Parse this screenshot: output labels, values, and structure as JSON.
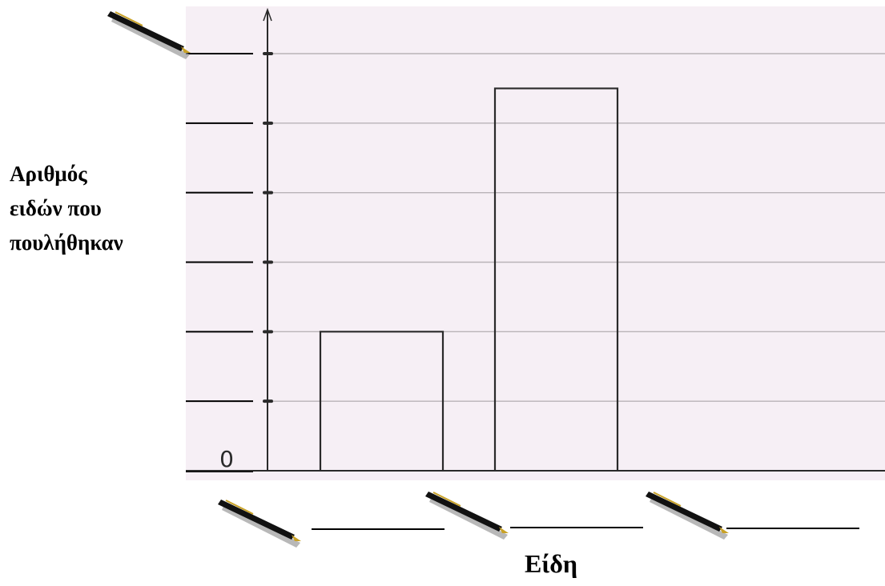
{
  "chart_data": {
    "type": "bar",
    "categories": [
      "",
      "",
      ""
    ],
    "values": [
      2,
      5.5,
      null
    ],
    "ylim": [
      0,
      6
    ],
    "y_gridlines": [
      1,
      2,
      3,
      4,
      5,
      6
    ],
    "ylabel_lines": [
      "Αριθμός",
      "ειδών που",
      "πουλήθηκαν"
    ],
    "xlabel": "Είδη",
    "y_tick_labels": [
      "0"
    ],
    "grid": true,
    "bar_style": "outline"
  },
  "icons": {
    "pen": "pen-icon"
  },
  "colors": {
    "paper": "#f6eff5",
    "gridline": "#b9b3b7",
    "ink": "#2a2a2a"
  }
}
